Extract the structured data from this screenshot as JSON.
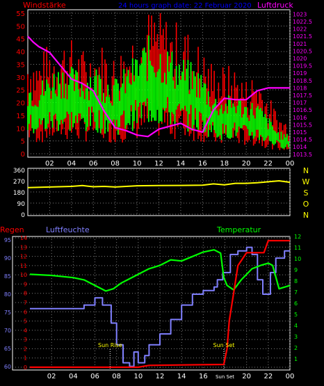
{
  "header": {
    "left": "Windstärke",
    "center": "24 hours graph date: 22 Februar 2020",
    "right": "Luftdruck"
  },
  "colors": {
    "background": "#000000",
    "wind_gust": "#ff0000",
    "wind_avg": "#00ff00",
    "pressure": "#ff00ff",
    "direction": "#ffff00",
    "humidity": "#8080ff",
    "temperature": "#00ff00",
    "rain": "#ff0000",
    "grid": "#808080",
    "axis_frame": "#ffffff",
    "header_center": "#0000ff"
  },
  "chart_data": [
    {
      "type": "line",
      "panel": "wind-pressure",
      "left_axis_label": "Windstärke",
      "right_axis_label": "Luftdruck",
      "ylim_left": [
        0,
        55
      ],
      "ylim_right": [
        1013.3,
        1023.3
      ],
      "left_ticks": [
        0,
        5,
        10,
        15,
        20,
        25,
        30,
        35,
        40,
        45,
        50,
        55
      ],
      "right_ticks": [
        "1013.5",
        "1014",
        "1014.5",
        "1015",
        "1015.5",
        "1016",
        "1016.5",
        "1017",
        "1017.5",
        "1018",
        "1018.5",
        "1019",
        "1019.5",
        "1020",
        "1020.5",
        "1021",
        "1021.5",
        "1022",
        "1022.5",
        "1023"
      ],
      "x_ticks": [
        "02",
        "04",
        "06",
        "08",
        "10",
        "12",
        "14",
        "16",
        "18",
        "20",
        "22",
        "00"
      ],
      "grid": true,
      "series": [
        {
          "key": "gust",
          "x": [
            0,
            1,
            2,
            3,
            4,
            5,
            6,
            7,
            8,
            9,
            10,
            11,
            12,
            13,
            14,
            15,
            16,
            17,
            18,
            19,
            20,
            21,
            22,
            23,
            24
          ],
          "values": [
            33,
            30,
            34,
            36,
            35,
            32,
            33,
            34,
            30,
            36,
            40,
            44,
            45,
            41,
            40,
            37,
            32,
            28,
            27,
            27,
            23,
            26,
            18,
            12,
            10
          ]
        },
        {
          "key": "average",
          "x": [
            0,
            1,
            2,
            3,
            4,
            5,
            6,
            7,
            8,
            9,
            10,
            11,
            12,
            13,
            14,
            15,
            16,
            17,
            18,
            19,
            20,
            21,
            22,
            23,
            24
          ],
          "values": [
            20,
            19,
            22,
            24,
            23,
            22,
            24,
            22,
            20,
            23,
            27,
            31,
            30,
            28,
            26,
            24,
            22,
            16,
            15,
            16,
            14,
            14,
            10,
            6,
            5
          ]
        },
        {
          "key": "pressure",
          "x": [
            0,
            0.5,
            1,
            2,
            3,
            4,
            5,
            6,
            7,
            8,
            9,
            10,
            11,
            12,
            13,
            14,
            15,
            16,
            17,
            18,
            19,
            20,
            21,
            22,
            23,
            24
          ],
          "values": [
            1021.5,
            1021.1,
            1020.8,
            1020.4,
            1019.5,
            1018.6,
            1018.3,
            1017.8,
            1016.4,
            1015.3,
            1015.1,
            1014.8,
            1014.7,
            1015.2,
            1015.4,
            1015.6,
            1015.2,
            1015.0,
            1016.5,
            1017.3,
            1017.2,
            1017.2,
            1017.8,
            1018.0,
            1018.0,
            1018.0
          ]
        }
      ]
    },
    {
      "type": "line",
      "panel": "wind-direction",
      "left_ticks": [
        0,
        90,
        180,
        270,
        360
      ],
      "ylim": [
        0,
        360
      ],
      "right_labels": [
        "N",
        "W",
        "S",
        "O",
        "N"
      ],
      "grid": true,
      "series": [
        {
          "key": "direction",
          "x": [
            0,
            2,
            4,
            5,
            6,
            7,
            8,
            10,
            12,
            14,
            16,
            17,
            18,
            19,
            20,
            21,
            22,
            23,
            24
          ],
          "values": [
            215,
            220,
            225,
            232,
            222,
            225,
            220,
            230,
            232,
            233,
            235,
            245,
            238,
            250,
            250,
            255,
            262,
            270,
            258
          ]
        }
      ]
    },
    {
      "type": "line",
      "panel": "rain-humidity-temperature",
      "left_label_rain": "Regen",
      "left_label_humidity": "Luftfeuchte",
      "right_label": "Temperatur",
      "rain_ticks": [
        0,
        1,
        2,
        3,
        4,
        5,
        6,
        7,
        8,
        9,
        10,
        11,
        12,
        13,
        14
      ],
      "humidity_ticks": [
        60,
        65,
        70,
        75,
        80,
        85,
        90,
        95
      ],
      "temperature_ticks": [
        1,
        2,
        3,
        4,
        5,
        6,
        7,
        8,
        9,
        10,
        11,
        12
      ],
      "ylim_rain": [
        0,
        14
      ],
      "ylim_humidity": [
        59,
        96
      ],
      "ylim_temperature": [
        0,
        12
      ],
      "x_ticks": [
        "02",
        "04",
        "06",
        "08",
        "10",
        "12",
        "14",
        "16",
        "Sun Set",
        "20",
        "22",
        "00"
      ],
      "sun_rise": {
        "label": "Sun Rise",
        "x": 7.4
      },
      "sun_set": {
        "label": "Sun Set",
        "x": 17.9
      },
      "grid": true,
      "series": [
        {
          "key": "humidity",
          "x": [
            0,
            5,
            6,
            6.7,
            7.5,
            8,
            8.6,
            9.2,
            9.6,
            10,
            10.6,
            11,
            12,
            13,
            14,
            15,
            16,
            17,
            17.3,
            17.8,
            18.5,
            19.2,
            20,
            20.5,
            21,
            21.5,
            22.2,
            22.7,
            23.5,
            24
          ],
          "values": [
            76,
            77,
            79,
            77,
            72,
            66,
            61,
            60,
            64,
            61,
            63,
            66,
            69,
            73,
            77,
            80,
            81,
            82,
            84,
            86,
            91,
            92,
            93,
            91,
            84,
            80,
            86,
            90,
            92,
            92
          ]
        },
        {
          "key": "temperature",
          "x": [
            0,
            2,
            4,
            5,
            6,
            7,
            7.7,
            8.4,
            9,
            10,
            11,
            12,
            13,
            14,
            15,
            16,
            17,
            17.6,
            17.9,
            18.2,
            18.8,
            19.5,
            20,
            20.5,
            21.3,
            22,
            22.4,
            23,
            24
          ],
          "values": [
            8.6,
            8.5,
            8.3,
            8.1,
            7.6,
            7.1,
            7.3,
            7.8,
            8.1,
            8.6,
            9.1,
            9.4,
            9.9,
            9.8,
            10.2,
            10.6,
            10.8,
            10.5,
            8.3,
            7.6,
            7.2,
            8.1,
            8.6,
            9.1,
            9.4,
            9.6,
            9.4,
            7.3,
            7.6
          ]
        },
        {
          "key": "rain",
          "x": [
            0,
            10,
            11,
            17.9,
            18.2,
            18.4,
            18.8,
            19.2,
            20,
            21.6,
            22,
            24
          ],
          "values": [
            0,
            0,
            0.2,
            0.3,
            2,
            5,
            8,
            11,
            12.4,
            12.4,
            13.7,
            13.7
          ]
        }
      ]
    }
  ]
}
